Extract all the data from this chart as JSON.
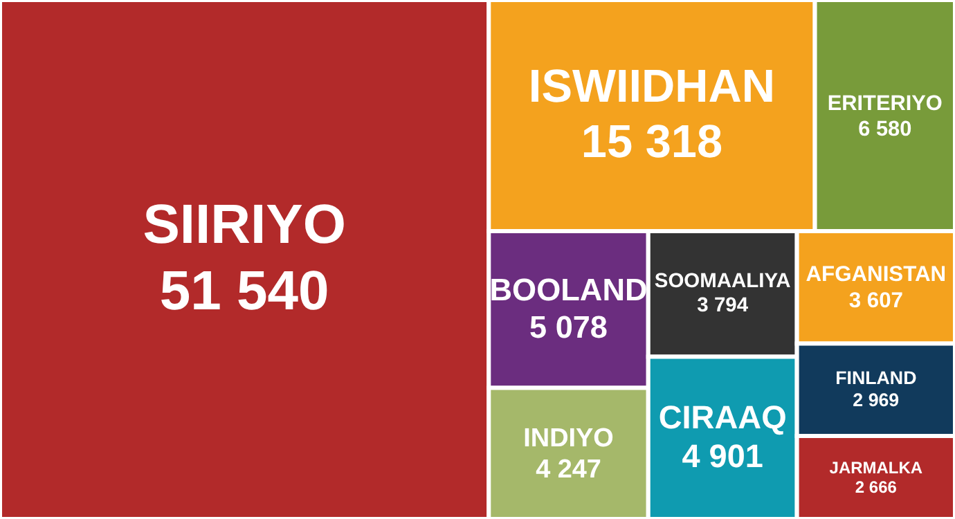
{
  "chart_data": {
    "type": "other",
    "categories": [
      "SIIRIYO",
      "ISWIIDHAN",
      "ERITERIYO",
      "BOOLAND",
      "INDIYO",
      "SOOMAALIYA",
      "CIRAAQ",
      "AFGANISTAN",
      "FINLAND",
      "JARMALKA"
    ],
    "values": [
      51540,
      15318,
      6580,
      5078,
      4247,
      3794,
      4901,
      3607,
      2969,
      2666
    ],
    "value_labels": [
      "51 540",
      "15 318",
      "6 580",
      "5 078",
      "4 247",
      "3 794",
      "4 901",
      "3 607",
      "2 969",
      "2 666"
    ],
    "colors": [
      "#b22a2a",
      "#f4a21e",
      "#789b3a",
      "#6b2d7f",
      "#a5b86a",
      "#333333",
      "#0f9bb0",
      "#f4a21e",
      "#113a5c",
      "#b22a2a"
    ]
  }
}
